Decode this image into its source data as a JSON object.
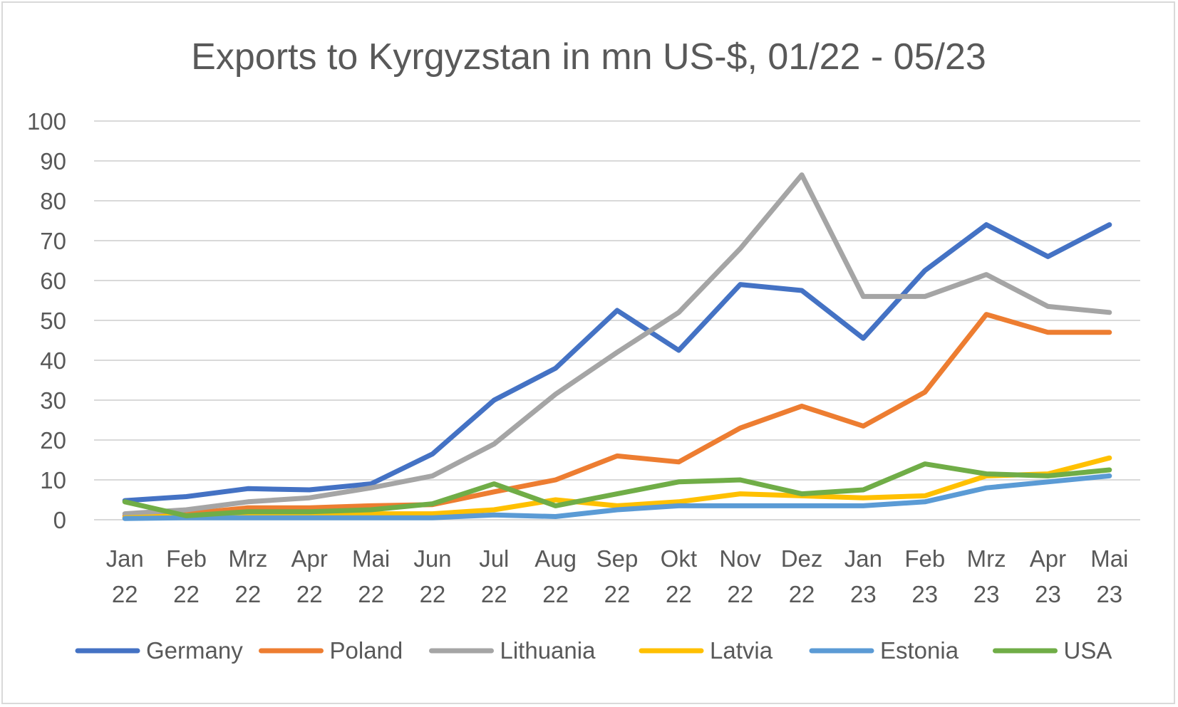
{
  "chart_data": {
    "type": "line",
    "title": "Exports to Kyrgyzstan in mn US-$, 01/22 - 05/23",
    "xlabel": "",
    "ylabel": "",
    "ylim": [
      0,
      100
    ],
    "yticks": [
      "0",
      "10",
      "20",
      "30",
      "40",
      "50",
      "60",
      "70",
      "80",
      "90",
      "100"
    ],
    "grid": true,
    "legend_position": "bottom",
    "categories": [
      [
        "Jan",
        "22"
      ],
      [
        "Feb",
        "22"
      ],
      [
        "Mrz",
        "22"
      ],
      [
        "Apr",
        "22"
      ],
      [
        "Mai",
        "22"
      ],
      [
        "Jun",
        "22"
      ],
      [
        "Jul",
        "22"
      ],
      [
        "Aug",
        "22"
      ],
      [
        "Sep",
        "22"
      ],
      [
        "Okt",
        "22"
      ],
      [
        "Nov",
        "22"
      ],
      [
        "Dez",
        "22"
      ],
      [
        "Jan",
        "23"
      ],
      [
        "Feb",
        "23"
      ],
      [
        "Mrz",
        "23"
      ],
      [
        "Apr",
        "23"
      ],
      [
        "Mai",
        "23"
      ]
    ],
    "series": [
      {
        "name": "Germany",
        "color": "#4472c4",
        "values": [
          4.8,
          5.8,
          7.8,
          7.5,
          9.0,
          16.5,
          30.0,
          38.0,
          52.5,
          42.5,
          59.0,
          57.5,
          45.5,
          62.5,
          74.0,
          66.0,
          74.0
        ]
      },
      {
        "name": "Poland",
        "color": "#ed7d31",
        "values": [
          1.0,
          1.5,
          3.0,
          3.0,
          3.5,
          3.8,
          7.0,
          10.0,
          16.0,
          14.5,
          23.0,
          28.5,
          23.5,
          32.0,
          51.5,
          47.0,
          47.0
        ]
      },
      {
        "name": "Lithuania",
        "color": "#a5a5a5",
        "values": [
          1.5,
          2.5,
          4.5,
          5.5,
          8.0,
          11.0,
          19.0,
          31.5,
          42.0,
          52.0,
          68.0,
          86.5,
          56.0,
          56.0,
          61.5,
          53.5,
          52.0
        ]
      },
      {
        "name": "Latvia",
        "color": "#ffc000",
        "values": [
          0.5,
          1.0,
          1.5,
          1.5,
          1.5,
          1.5,
          2.5,
          5.0,
          3.5,
          4.5,
          6.5,
          6.0,
          5.5,
          6.0,
          11.0,
          11.5,
          15.5
        ]
      },
      {
        "name": "Estonia",
        "color": "#5b9bd5",
        "values": [
          0.3,
          0.5,
          0.5,
          0.5,
          0.5,
          0.5,
          1.2,
          0.8,
          2.5,
          3.5,
          3.5,
          3.5,
          3.5,
          4.5,
          8.0,
          9.5,
          11.0
        ]
      },
      {
        "name": "USA",
        "color": "#70ad47",
        "values": [
          4.5,
          1.0,
          2.0,
          2.0,
          2.5,
          4.0,
          9.0,
          3.5,
          6.5,
          9.5,
          10.0,
          6.5,
          7.5,
          14.0,
          11.5,
          11.0,
          12.5
        ]
      }
    ]
  }
}
